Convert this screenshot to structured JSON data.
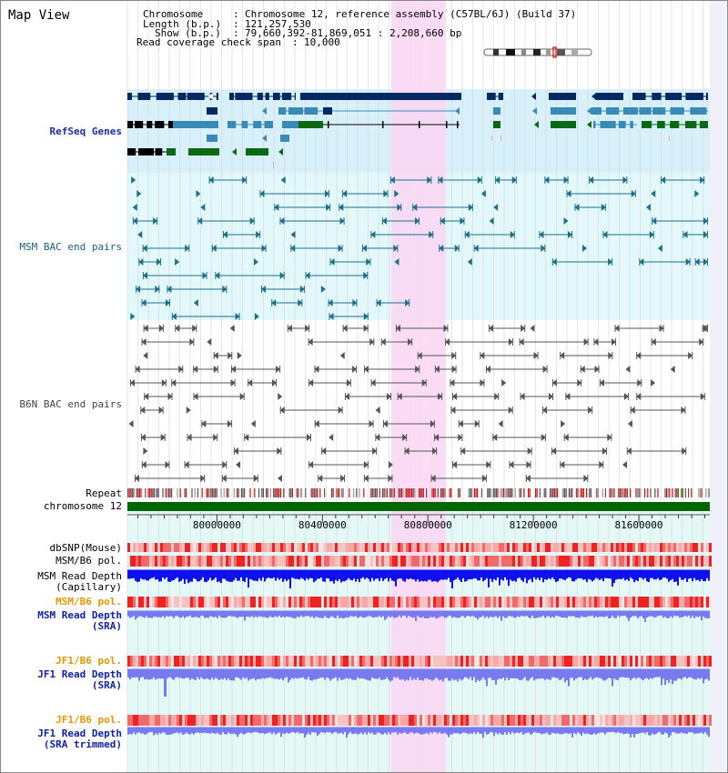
{
  "title": "Map View",
  "info": {
    "chromosome_label": "Chromosome",
    "chromosome_value": "Chromosome 12, reference assembly (C57BL/6J) (Build 37)",
    "length_label": "Length (b.p.)",
    "length_value": "121,257,530",
    "show_label": "Show (b.p.)",
    "show_value": "79,660,392-81,869,051 : 2,208,660 bp",
    "span_label": "Read coverage check span",
    "span_value": "10,000"
  },
  "axis": {
    "start": 79660392,
    "end": 81869051,
    "ticks": [
      80000000,
      80400000,
      80800000,
      81200000,
      81600000
    ],
    "tick_labels": [
      "80000000",
      "80400000",
      "80800000",
      "81200000",
      "81600000"
    ]
  },
  "highlight": {
    "start": 80660000,
    "end": 80870000,
    "color": "#fbd6f3"
  },
  "tracks": {
    "refseq": {
      "label": "RefSeq Genes",
      "color": "#1a2ea8"
    },
    "msm_bac": {
      "label": "MSM BAC end pairs",
      "color": "#116677"
    },
    "b6n_bac": {
      "label": "B6N BAC end pairs",
      "color": "#444444"
    },
    "repeat": {
      "label": "Repeat"
    },
    "chromosome": {
      "label": "chromosome 12",
      "color": "#006600"
    },
    "dbsnp": {
      "label": "dbSNP(Mouse)"
    },
    "msm_b6_pol": {
      "label": "MSM/B6 pol."
    },
    "msm_read_depth_capillary": {
      "label1": "MSM Read Depth",
      "label2": "(Capillary)"
    },
    "msm_b6_pol_sra": {
      "label": "MSM/B6 pol.",
      "color": "#e89600"
    },
    "msm_read_depth_sra": {
      "label1": "MSM Read Depth",
      "label2": "(SRA)",
      "color": "#1122aa"
    },
    "jf1_b6_pol": {
      "label": "JF1/B6 pol.",
      "color": "#e89600"
    },
    "jf1_read_depth_sra": {
      "label1": "JF1 Read Depth",
      "label2": "(SRA)",
      "color": "#1122aa"
    },
    "jf1_b6_pol_trimmed": {
      "label": "JF1/B6 pol.",
      "color": "#e89600"
    },
    "jf1_read_depth_trimmed": {
      "label1": "JF1 Read Depth",
      "label2": "(SRA trimmed)",
      "color": "#1122aa"
    }
  },
  "colors": {
    "gene_dark": "#052a63",
    "gene_mid": "#3a8ab8",
    "gene_green": "#0a6a14",
    "bac_msm": "#1d6f8a",
    "bac_b6n": "#555555",
    "depth_capillary": "#1010ee",
    "depth_sra": "#7a7af0",
    "pol_red": "#ee2222",
    "pol_pink": "#f7a8a8"
  }
}
